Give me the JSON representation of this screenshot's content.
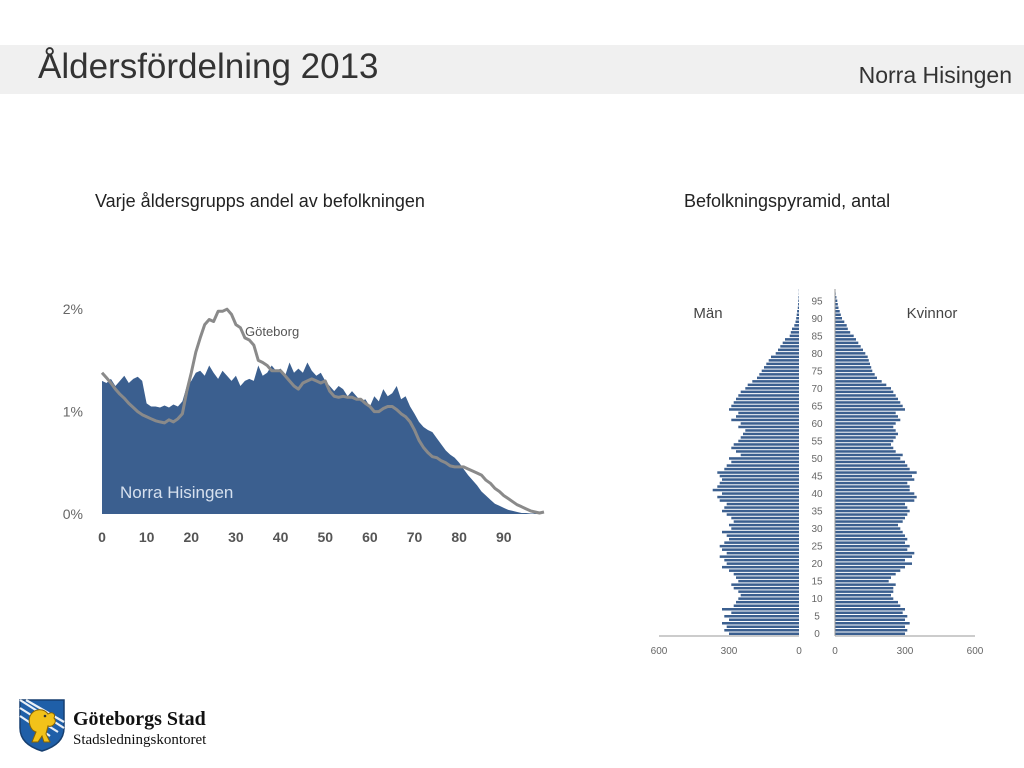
{
  "header": {
    "title": "Åldersfördelning 2013",
    "region": "Norra Hisingen"
  },
  "left_panel": {
    "title": "Varje åldersgrupps andel av befolkningen"
  },
  "right_panel": {
    "title": "Befolkningspyramid, antal"
  },
  "footer": {
    "org_name": "Göteborgs Stad",
    "org_sub": "Stadsledningskontoret"
  },
  "colors": {
    "area": "#3b5f8f",
    "line": "#8a8a8a",
    "bar": "#3b5f8f",
    "axis": "#999999",
    "tick_text": "#666666"
  },
  "chart_data": [
    {
      "type": "area",
      "title": "",
      "series": [
        {
          "name": "Norra Hisingen",
          "label": "Norra Hisingen",
          "x": [
            0,
            1,
            2,
            3,
            4,
            5,
            6,
            7,
            8,
            9,
            10,
            11,
            12,
            13,
            14,
            15,
            16,
            17,
            18,
            19,
            20,
            21,
            22,
            23,
            24,
            25,
            26,
            27,
            28,
            29,
            30,
            31,
            32,
            33,
            34,
            35,
            36,
            37,
            38,
            39,
            40,
            41,
            42,
            43,
            44,
            45,
            46,
            47,
            48,
            49,
            50,
            51,
            52,
            53,
            54,
            55,
            56,
            57,
            58,
            59,
            60,
            61,
            62,
            63,
            64,
            65,
            66,
            67,
            68,
            69,
            70,
            71,
            72,
            73,
            74,
            75,
            76,
            77,
            78,
            79,
            80,
            81,
            82,
            83,
            84,
            85,
            86,
            87,
            88,
            89,
            90,
            91,
            92,
            93,
            94,
            95,
            96,
            97,
            98,
            99
          ],
          "y": [
            1.3,
            1.28,
            1.32,
            1.25,
            1.3,
            1.35,
            1.28,
            1.32,
            1.34,
            1.3,
            1.08,
            1.05,
            1.05,
            1.04,
            1.06,
            1.04,
            1.07,
            1.05,
            1.1,
            1.25,
            1.3,
            1.38,
            1.4,
            1.35,
            1.45,
            1.38,
            1.32,
            1.4,
            1.35,
            1.3,
            1.35,
            1.25,
            1.3,
            1.32,
            1.3,
            1.45,
            1.35,
            1.38,
            1.45,
            1.4,
            1.42,
            1.35,
            1.48,
            1.38,
            1.42,
            1.38,
            1.48,
            1.4,
            1.35,
            1.38,
            1.3,
            1.25,
            1.2,
            1.25,
            1.22,
            1.15,
            1.2,
            1.15,
            1.1,
            1.12,
            1.05,
            1.15,
            1.1,
            1.22,
            1.15,
            1.18,
            1.25,
            1.12,
            1.15,
            1.05,
            0.98,
            0.9,
            0.85,
            0.82,
            0.8,
            0.74,
            0.68,
            0.62,
            0.58,
            0.55,
            0.5,
            0.44,
            0.38,
            0.33,
            0.28,
            0.22,
            0.18,
            0.14,
            0.1,
            0.08,
            0.06,
            0.04,
            0.03,
            0.02,
            0.01,
            0.01,
            0.005,
            0.005,
            0.002,
            0.0
          ]
        },
        {
          "name": "Göteborg",
          "label": "Göteborg",
          "x": [
            0,
            1,
            2,
            3,
            4,
            5,
            6,
            7,
            8,
            9,
            10,
            11,
            12,
            13,
            14,
            15,
            16,
            17,
            18,
            19,
            20,
            21,
            22,
            23,
            24,
            25,
            26,
            27,
            28,
            29,
            30,
            31,
            32,
            33,
            34,
            35,
            36,
            37,
            38,
            39,
            40,
            41,
            42,
            43,
            44,
            45,
            46,
            47,
            48,
            49,
            50,
            51,
            52,
            53,
            54,
            55,
            56,
            57,
            58,
            59,
            60,
            61,
            62,
            63,
            64,
            65,
            66,
            67,
            68,
            69,
            70,
            71,
            72,
            73,
            74,
            75,
            76,
            77,
            78,
            79,
            80,
            81,
            82,
            83,
            84,
            85,
            86,
            87,
            88,
            89,
            90,
            91,
            92,
            93,
            94,
            95,
            96,
            97,
            98,
            99
          ],
          "y": [
            1.38,
            1.33,
            1.28,
            1.22,
            1.17,
            1.13,
            1.08,
            1.04,
            1.0,
            0.97,
            0.95,
            0.93,
            0.91,
            0.9,
            0.89,
            0.92,
            0.9,
            0.93,
            0.98,
            1.2,
            1.38,
            1.58,
            1.72,
            1.85,
            1.9,
            1.88,
            1.98,
            1.98,
            2.0,
            1.95,
            1.85,
            1.82,
            1.72,
            1.7,
            1.65,
            1.5,
            1.48,
            1.45,
            1.4,
            1.4,
            1.4,
            1.35,
            1.3,
            1.25,
            1.22,
            1.28,
            1.3,
            1.32,
            1.3,
            1.28,
            1.3,
            1.2,
            1.15,
            1.14,
            1.15,
            1.14,
            1.14,
            1.12,
            1.12,
            1.08,
            1.05,
            1.0,
            1.0,
            1.03,
            1.05,
            1.05,
            1.02,
            0.98,
            0.95,
            0.9,
            0.82,
            0.72,
            0.65,
            0.6,
            0.56,
            0.55,
            0.52,
            0.5,
            0.47,
            0.46,
            0.46,
            0.46,
            0.44,
            0.42,
            0.4,
            0.38,
            0.33,
            0.3,
            0.25,
            0.22,
            0.18,
            0.15,
            0.12,
            0.09,
            0.07,
            0.05,
            0.03,
            0.02,
            0.01,
            0.02
          ]
        }
      ],
      "xticks": [
        0,
        10,
        20,
        30,
        40,
        50,
        60,
        70,
        80,
        90
      ],
      "yticks": [
        0,
        1,
        2
      ],
      "ytick_labels": [
        "0%",
        "1%",
        "2%"
      ],
      "xlim": [
        0,
        99
      ],
      "ylim": [
        0,
        2.1
      ],
      "xlabel": "",
      "ylabel": "",
      "grid": false,
      "legend": "none"
    },
    {
      "type": "bar",
      "title": "",
      "left_label": "Män",
      "right_label": "Kvinnor",
      "ages": [
        0,
        1,
        2,
        3,
        4,
        5,
        6,
        7,
        8,
        9,
        10,
        11,
        12,
        13,
        14,
        15,
        16,
        17,
        18,
        19,
        20,
        21,
        22,
        23,
        24,
        25,
        26,
        27,
        28,
        29,
        30,
        31,
        32,
        33,
        34,
        35,
        36,
        37,
        38,
        39,
        40,
        41,
        42,
        43,
        44,
        45,
        46,
        47,
        48,
        49,
        50,
        51,
        52,
        53,
        54,
        55,
        56,
        57,
        58,
        59,
        60,
        61,
        62,
        63,
        64,
        65,
        66,
        67,
        68,
        69,
        70,
        71,
        72,
        73,
        74,
        75,
        76,
        77,
        78,
        79,
        80,
        81,
        82,
        83,
        84,
        85,
        86,
        87,
        88,
        89,
        90,
        91,
        92,
        93,
        94,
        95,
        96,
        97,
        98
      ],
      "series": [
        {
          "name": "Män",
          "values": [
            300,
            320,
            310,
            330,
            300,
            320,
            290,
            330,
            280,
            270,
            260,
            250,
            260,
            280,
            290,
            260,
            270,
            280,
            300,
            330,
            310,
            320,
            340,
            310,
            330,
            340,
            320,
            300,
            310,
            330,
            290,
            300,
            280,
            290,
            310,
            330,
            320,
            310,
            340,
            350,
            330,
            370,
            350,
            340,
            330,
            340,
            350,
            320,
            310,
            290,
            300,
            250,
            270,
            290,
            280,
            260,
            250,
            240,
            230,
            260,
            250,
            290,
            270,
            260,
            300,
            290,
            280,
            270,
            260,
            250,
            230,
            220,
            200,
            180,
            170,
            160,
            150,
            140,
            130,
            120,
            100,
            90,
            80,
            70,
            60,
            40,
            35,
            30,
            20,
            15,
            12,
            10,
            8,
            5,
            4,
            3,
            2,
            1,
            1
          ]
        },
        {
          "name": "Kvinnor",
          "values": [
            300,
            310,
            300,
            320,
            300,
            310,
            290,
            300,
            280,
            270,
            250,
            240,
            250,
            250,
            260,
            230,
            240,
            260,
            280,
            300,
            330,
            300,
            330,
            340,
            310,
            320,
            300,
            310,
            300,
            290,
            280,
            270,
            290,
            300,
            310,
            320,
            310,
            300,
            340,
            350,
            340,
            320,
            320,
            310,
            340,
            330,
            350,
            320,
            310,
            300,
            280,
            290,
            260,
            250,
            240,
            250,
            260,
            270,
            260,
            250,
            260,
            280,
            270,
            260,
            300,
            290,
            280,
            270,
            260,
            250,
            240,
            220,
            200,
            180,
            170,
            160,
            155,
            150,
            145,
            140,
            130,
            120,
            110,
            100,
            90,
            80,
            65,
            55,
            50,
            40,
            30,
            25,
            20,
            15,
            12,
            10,
            6,
            3,
            1
          ]
        }
      ],
      "age_ticks": [
        0,
        5,
        10,
        15,
        20,
        25,
        30,
        35,
        40,
        45,
        50,
        55,
        60,
        65,
        70,
        75,
        80,
        85,
        90,
        95
      ],
      "xticks_left": [
        600,
        300,
        0
      ],
      "xticks_right": [
        0,
        300,
        600
      ],
      "xlim": [
        0,
        600
      ],
      "grid": false
    }
  ]
}
